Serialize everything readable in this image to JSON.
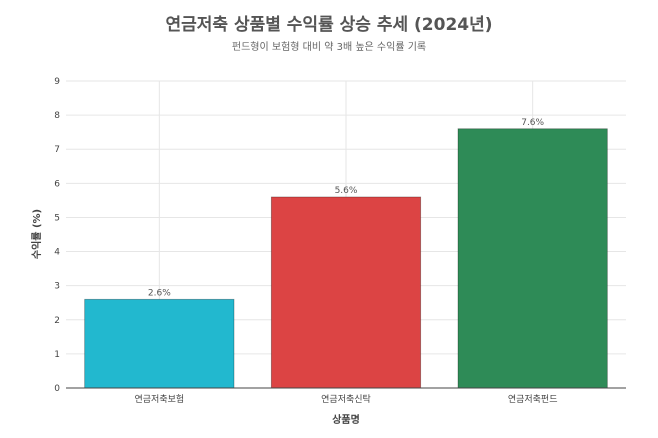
{
  "chart_data": {
    "type": "bar",
    "title": "연금저축 상품별 수익률 상승 추세 (2024년)",
    "subtitle": "펀드형이 보험형 대비 약 3배 높은 수익률 기록",
    "xlabel": "상품명",
    "ylabel": "수익률 (%)",
    "categories": [
      "연금저축보험",
      "연금저축신탁",
      "연금저축펀드"
    ],
    "values": [
      2.6,
      5.6,
      7.6
    ],
    "value_labels": [
      "2.6%",
      "5.6%",
      "7.6%"
    ],
    "colors": [
      "#22b8cf",
      "#dc4444",
      "#2e8b57"
    ],
    "ylim": [
      0,
      9
    ],
    "yticks": [
      0,
      1,
      2,
      3,
      4,
      5,
      6,
      7,
      8,
      9
    ],
    "grid": true,
    "legend": "none"
  }
}
